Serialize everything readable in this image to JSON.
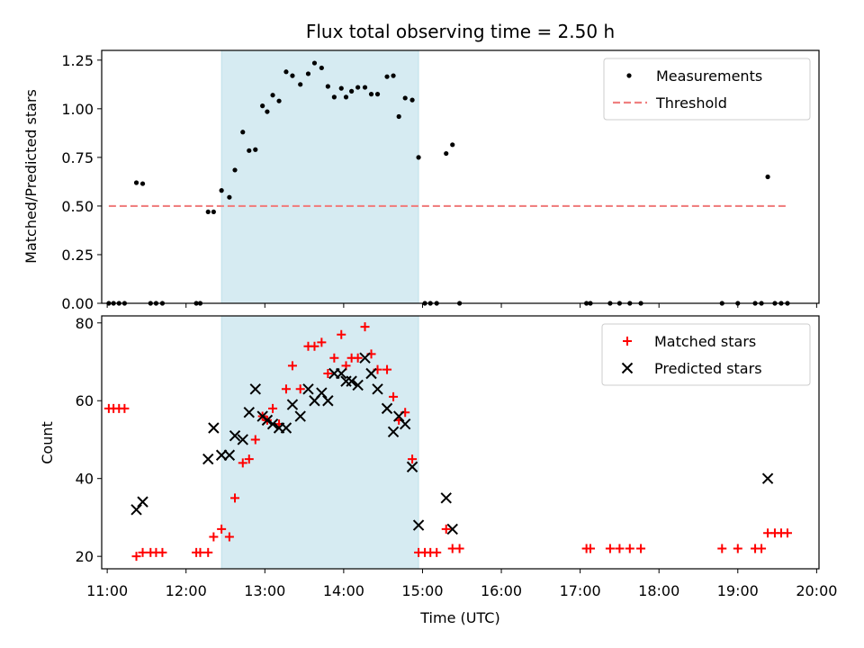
{
  "chart_data": {
    "title": "Flux total observing time = 2.50 h",
    "xlabel": "Time (UTC)",
    "x_ticks": [
      "11:00",
      "12:00",
      "13:00",
      "14:00",
      "15:00",
      "16:00",
      "17:00",
      "18:00",
      "19:00",
      "20:00"
    ],
    "xlim": [
      10.93,
      20.03
    ],
    "shaded_interval": {
      "start": 12.45,
      "end": 14.95,
      "color": "#add8e6"
    },
    "colors": {
      "measurements": "#000000",
      "threshold": "#f08080",
      "matched": "#ff0000",
      "predicted": "#000000",
      "shade": "#add8e6"
    },
    "panels": [
      {
        "type": "scatter",
        "ylabel": "Matched/Predicted stars",
        "ylim": [
          0,
          1.3
        ],
        "y_ticks": [
          "0.00",
          "0.25",
          "0.50",
          "0.75",
          "1.00",
          "1.25"
        ],
        "y_tick_values": [
          0,
          0.25,
          0.5,
          0.75,
          1.0,
          1.25
        ],
        "legend_position": "top-right",
        "series": [
          {
            "name": "Measurements",
            "marker": "dot",
            "points": [
              [
                11.02,
                0
              ],
              [
                11.08,
                0
              ],
              [
                11.15,
                0
              ],
              [
                11.22,
                0
              ],
              [
                11.37,
                0.62
              ],
              [
                11.45,
                0.615
              ],
              [
                11.55,
                0
              ],
              [
                11.62,
                0
              ],
              [
                11.7,
                0
              ],
              [
                12.13,
                0
              ],
              [
                12.18,
                0
              ],
              [
                12.28,
                0.47
              ],
              [
                12.35,
                0.47
              ],
              [
                12.45,
                0.58
              ],
              [
                12.55,
                0.545
              ],
              [
                12.62,
                0.685
              ],
              [
                12.72,
                0.88
              ],
              [
                12.8,
                0.785
              ],
              [
                12.88,
                0.79
              ],
              [
                12.97,
                1.015
              ],
              [
                13.03,
                0.985
              ],
              [
                13.1,
                1.07
              ],
              [
                13.18,
                1.04
              ],
              [
                13.27,
                1.19
              ],
              [
                13.35,
                1.17
              ],
              [
                13.45,
                1.125
              ],
              [
                13.55,
                1.18
              ],
              [
                13.63,
                1.235
              ],
              [
                13.72,
                1.21
              ],
              [
                13.8,
                1.115
              ],
              [
                13.88,
                1.06
              ],
              [
                13.97,
                1.105
              ],
              [
                14.03,
                1.06
              ],
              [
                14.1,
                1.09
              ],
              [
                14.18,
                1.11
              ],
              [
                14.27,
                1.11
              ],
              [
                14.35,
                1.075
              ],
              [
                14.43,
                1.075
              ],
              [
                14.55,
                1.165
              ],
              [
                14.63,
                1.17
              ],
              [
                14.7,
                0.96
              ],
              [
                14.78,
                1.055
              ],
              [
                14.87,
                1.045
              ],
              [
                14.95,
                0.75
              ],
              [
                15.03,
                0
              ],
              [
                15.1,
                0
              ],
              [
                15.18,
                0
              ],
              [
                15.3,
                0.77
              ],
              [
                15.38,
                0.815
              ],
              [
                15.47,
                0
              ],
              [
                17.08,
                0
              ],
              [
                17.13,
                0
              ],
              [
                17.38,
                0
              ],
              [
                17.5,
                0
              ],
              [
                17.63,
                0
              ],
              [
                17.77,
                0
              ],
              [
                18.8,
                0
              ],
              [
                19.0,
                0
              ],
              [
                19.22,
                0
              ],
              [
                19.3,
                0
              ],
              [
                19.38,
                0.65
              ],
              [
                19.47,
                0
              ],
              [
                19.55,
                0
              ],
              [
                19.63,
                0
              ]
            ]
          },
          {
            "name": "Threshold",
            "marker": "dashed-line",
            "points": [
              [
                11.02,
                0.5
              ],
              [
                19.63,
                0.5
              ]
            ]
          }
        ]
      },
      {
        "type": "scatter",
        "ylabel": "Count",
        "ylim": [
          16.8,
          81.8
        ],
        "y_ticks": [
          "20",
          "40",
          "60",
          "80"
        ],
        "y_tick_values": [
          20,
          40,
          60,
          80
        ],
        "legend_position": "top-right",
        "series": [
          {
            "name": "Matched stars",
            "marker": "plus",
            "points": [
              [
                11.02,
                58
              ],
              [
                11.08,
                58
              ],
              [
                11.15,
                58
              ],
              [
                11.22,
                58
              ],
              [
                11.37,
                20
              ],
              [
                11.45,
                21
              ],
              [
                11.55,
                21
              ],
              [
                11.62,
                21
              ],
              [
                11.7,
                21
              ],
              [
                12.13,
                21
              ],
              [
                12.18,
                21
              ],
              [
                12.28,
                21
              ],
              [
                12.35,
                25
              ],
              [
                12.45,
                27
              ],
              [
                12.55,
                25
              ],
              [
                12.62,
                35
              ],
              [
                12.72,
                44
              ],
              [
                12.8,
                45
              ],
              [
                12.88,
                50
              ],
              [
                12.97,
                56
              ],
              [
                13.03,
                55
              ],
              [
                13.1,
                58
              ],
              [
                13.18,
                54
              ],
              [
                13.27,
                63
              ],
              [
                13.35,
                69
              ],
              [
                13.45,
                63
              ],
              [
                13.55,
                74
              ],
              [
                13.63,
                74
              ],
              [
                13.72,
                75
              ],
              [
                13.8,
                67
              ],
              [
                13.88,
                71
              ],
              [
                13.97,
                77
              ],
              [
                14.03,
                69
              ],
              [
                14.1,
                71
              ],
              [
                14.18,
                71
              ],
              [
                14.27,
                79
              ],
              [
                14.35,
                72
              ],
              [
                14.43,
                68
              ],
              [
                14.55,
                68
              ],
              [
                14.63,
                61
              ],
              [
                14.7,
                55
              ],
              [
                14.78,
                57
              ],
              [
                14.87,
                45
              ],
              [
                14.95,
                21
              ],
              [
                15.03,
                21
              ],
              [
                15.1,
                21
              ],
              [
                15.18,
                21
              ],
              [
                15.3,
                27
              ],
              [
                15.38,
                22
              ],
              [
                15.47,
                22
              ],
              [
                17.08,
                22
              ],
              [
                17.13,
                22
              ],
              [
                17.38,
                22
              ],
              [
                17.5,
                22
              ],
              [
                17.63,
                22
              ],
              [
                17.77,
                22
              ],
              [
                18.8,
                22
              ],
              [
                19.0,
                22
              ],
              [
                19.22,
                22
              ],
              [
                19.3,
                22
              ],
              [
                19.38,
                26
              ],
              [
                19.47,
                26
              ],
              [
                19.55,
                26
              ],
              [
                19.63,
                26
              ]
            ]
          },
          {
            "name": "Predicted stars",
            "marker": "x",
            "points": [
              [
                11.37,
                32
              ],
              [
                11.45,
                34
              ],
              [
                12.28,
                45
              ],
              [
                12.35,
                53
              ],
              [
                12.45,
                46
              ],
              [
                12.55,
                46
              ],
              [
                12.62,
                51
              ],
              [
                12.72,
                50
              ],
              [
                12.8,
                57
              ],
              [
                12.88,
                63
              ],
              [
                12.97,
                56
              ],
              [
                13.03,
                55
              ],
              [
                13.1,
                54
              ],
              [
                13.18,
                53
              ],
              [
                13.27,
                53
              ],
              [
                13.35,
                59
              ],
              [
                13.45,
                56
              ],
              [
                13.55,
                63
              ],
              [
                13.63,
                60
              ],
              [
                13.72,
                62
              ],
              [
                13.8,
                60
              ],
              [
                13.88,
                67
              ],
              [
                13.97,
                67
              ],
              [
                14.03,
                65
              ],
              [
                14.1,
                65
              ],
              [
                14.18,
                64
              ],
              [
                14.27,
                71
              ],
              [
                14.35,
                67
              ],
              [
                14.43,
                63
              ],
              [
                14.55,
                58
              ],
              [
                14.63,
                52
              ],
              [
                14.7,
                56
              ],
              [
                14.78,
                54
              ],
              [
                14.87,
                43
              ],
              [
                14.95,
                28
              ],
              [
                15.3,
                35
              ],
              [
                15.38,
                27
              ],
              [
                19.38,
                40
              ]
            ]
          }
        ]
      }
    ]
  }
}
